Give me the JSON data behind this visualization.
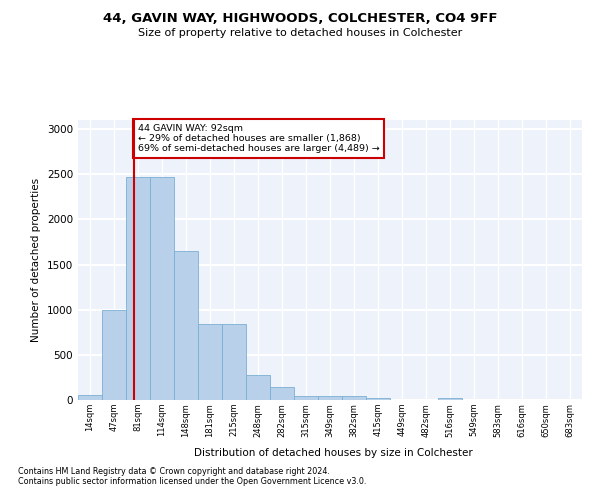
{
  "title1": "44, GAVIN WAY, HIGHWOODS, COLCHESTER, CO4 9FF",
  "title2": "Size of property relative to detached houses in Colchester",
  "xlabel": "Distribution of detached houses by size in Colchester",
  "ylabel": "Number of detached properties",
  "bin_labels": [
    "14sqm",
    "47sqm",
    "81sqm",
    "114sqm",
    "148sqm",
    "181sqm",
    "215sqm",
    "248sqm",
    "282sqm",
    "315sqm",
    "349sqm",
    "382sqm",
    "415sqm",
    "449sqm",
    "482sqm",
    "516sqm",
    "549sqm",
    "583sqm",
    "616sqm",
    "650sqm",
    "683sqm"
  ],
  "bin_edges": [
    0,
    1,
    2,
    3,
    4,
    5,
    6,
    7,
    8,
    9,
    10,
    11,
    12,
    13,
    14,
    15,
    16,
    17,
    18,
    19,
    20
  ],
  "bar_heights": [
    60,
    1000,
    2470,
    2470,
    1650,
    840,
    840,
    280,
    140,
    40,
    40,
    40,
    25,
    0,
    0,
    20,
    0,
    0,
    0,
    0,
    0
  ],
  "bar_color": "#b8d0ea",
  "bar_edge_color": "#7aafd4",
  "vline_x": 2.4,
  "vline_color": "#cc0000",
  "annotation_text": "44 GAVIN WAY: 92sqm\n← 29% of detached houses are smaller (1,868)\n69% of semi-detached houses are larger (4,489) →",
  "annotation_box_color": "white",
  "annotation_box_edge": "#cc0000",
  "ylim": [
    0,
    3100
  ],
  "yticks": [
    0,
    500,
    1000,
    1500,
    2000,
    2500,
    3000
  ],
  "background_color": "#eef2fa",
  "grid_color": "white",
  "footer1": "Contains HM Land Registry data © Crown copyright and database right 2024.",
  "footer2": "Contains public sector information licensed under the Open Government Licence v3.0."
}
